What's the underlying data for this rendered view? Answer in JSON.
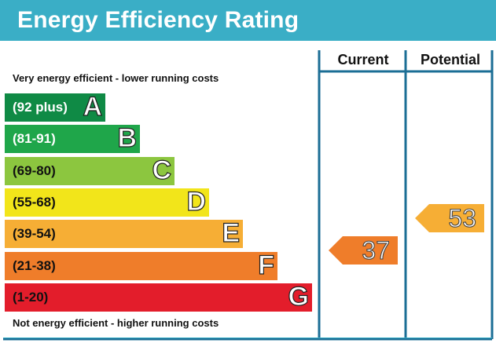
{
  "header": {
    "title": "Energy Efficiency Rating",
    "background": "#3aaec6"
  },
  "captions": {
    "top": "Very energy efficient - lower running costs",
    "bottom": "Not energy efficient - higher running costs"
  },
  "columns": {
    "current": "Current",
    "potential": "Potential"
  },
  "chart_data": {
    "type": "bar",
    "title": "Energy Efficiency Rating",
    "categories": [
      "A",
      "B",
      "C",
      "D",
      "E",
      "F",
      "G"
    ],
    "bands": [
      {
        "letter": "A",
        "range": "(92 plus)",
        "min": 92,
        "max": 100,
        "color": "#0f8a45",
        "text_color": "#ffffff"
      },
      {
        "letter": "B",
        "range": "(81-91)",
        "min": 81,
        "max": 91,
        "color": "#1fa64a",
        "text_color": "#ffffff"
      },
      {
        "letter": "C",
        "range": "(69-80)",
        "min": 69,
        "max": 80,
        "color": "#8cc63f",
        "text_color": "#111111"
      },
      {
        "letter": "D",
        "range": "(55-68)",
        "min": 55,
        "max": 68,
        "color": "#f2e51a",
        "text_color": "#111111"
      },
      {
        "letter": "E",
        "range": "(39-54)",
        "min": 39,
        "max": 54,
        "color": "#f6ae35",
        "text_color": "#111111"
      },
      {
        "letter": "F",
        "range": "(21-38)",
        "min": 21,
        "max": 38,
        "color": "#ef7d2a",
        "text_color": "#111111"
      },
      {
        "letter": "G",
        "range": "(1-20)",
        "min": 1,
        "max": 20,
        "color": "#e31d2b",
        "text_color": "#111111"
      }
    ],
    "series": [
      {
        "name": "Current",
        "value": 37,
        "band": "F",
        "color": "#ef7d2a"
      },
      {
        "name": "Potential",
        "value": 53,
        "band": "E",
        "color": "#f6ae35"
      }
    ]
  }
}
